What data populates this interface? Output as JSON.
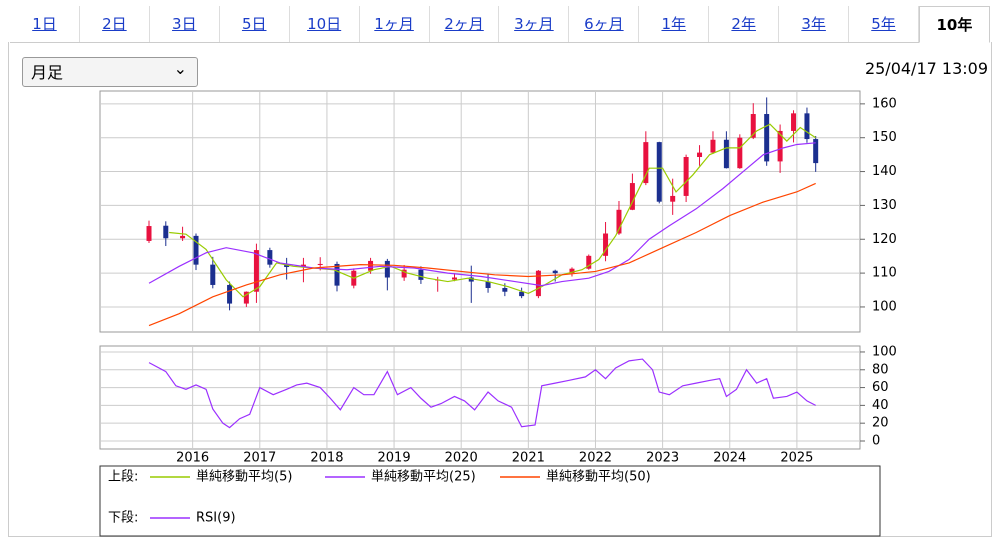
{
  "tabs": [
    "1日",
    "2日",
    "3日",
    "5日",
    "10日",
    "1ヶ月",
    "2ヶ月",
    "3ヶ月",
    "6ヶ月",
    "1年",
    "2年",
    "3年",
    "5年",
    "10年"
  ],
  "selected_tab": 13,
  "period_select": "月足",
  "timestamp": "25/04/17 13:09",
  "chart_data": [
    {
      "type": "candlestick",
      "legend_label": "上段:",
      "up_color": "#e8113f",
      "down_color": "#1b2f8f",
      "xlim": [
        2014.62,
        2025.94
      ],
      "xticks": [
        2016,
        2017,
        2018,
        2019,
        2020,
        2021,
        2022,
        2023,
        2024,
        2025
      ],
      "ylim": [
        92.6,
        163.8
      ],
      "yticks": [
        100,
        110,
        120,
        130,
        140,
        150,
        160
      ],
      "grid": true,
      "x": [
        2015.35,
        2015.6,
        2015.85,
        2016.05,
        2016.3,
        2016.55,
        2016.8,
        2016.95,
        2017.15,
        2017.4,
        2017.65,
        2017.9,
        2018.15,
        2018.4,
        2018.65,
        2018.9,
        2019.15,
        2019.4,
        2019.65,
        2019.9,
        2020.15,
        2020.4,
        2020.65,
        2020.9,
        2021.15,
        2021.4,
        2021.65,
        2021.9,
        2022.15,
        2022.35,
        2022.55,
        2022.75,
        2022.95,
        2023.15,
        2023.35,
        2023.55,
        2023.75,
        2023.95,
        2024.15,
        2024.35,
        2024.55,
        2024.75,
        2024.95,
        2025.15,
        2025.28
      ],
      "open": [
        119.5,
        124,
        120.3,
        121,
        112.5,
        106.5,
        101,
        104.5,
        116.8,
        112.5,
        111.8,
        112.5,
        112.7,
        106.3,
        110.7,
        113.6,
        108.7,
        111,
        108,
        108.1,
        108.7,
        107.5,
        105.6,
        104.5,
        103.2,
        110.7,
        110,
        111.3,
        115.1,
        121.7,
        128.7,
        136.6,
        148.7,
        131.1,
        132.8,
        144.3,
        145.6,
        149.4,
        141,
        150,
        157,
        143,
        152,
        157.2,
        149.6
      ],
      "high": [
        125.5,
        125.3,
        123.7,
        121.7,
        114.8,
        107.5,
        104.6,
        118.7,
        117.5,
        114.5,
        114.5,
        114.7,
        113.4,
        111.4,
        114.5,
        114.2,
        112.4,
        112,
        108.9,
        110,
        112.2,
        109.8,
        107,
        105.7,
        110.9,
        111,
        111.7,
        115.5,
        125.1,
        131.3,
        139.4,
        151.9,
        148.8,
        137.9,
        145,
        147.8,
        151.9,
        151.9,
        151,
        160.2,
        161.9,
        153.9,
        158.1,
        158.9,
        150.5
      ],
      "low": [
        118.9,
        118,
        119.5,
        110.9,
        105.5,
        99,
        100,
        101.2,
        111.6,
        108.1,
        107.3,
        110.8,
        104.6,
        105.5,
        109.8,
        104.9,
        107.7,
        106.8,
        104.5,
        107.6,
        101.2,
        104.2,
        103.2,
        102.6,
        102.6,
        107.5,
        109,
        111,
        113.5,
        121.3,
        128.6,
        136,
        130.6,
        127.2,
        131,
        141.7,
        145.2,
        140.9,
        140.8,
        149.6,
        141.7,
        139.6,
        148.6,
        148.5,
        139.9
      ],
      "close": [
        123.9,
        120.3,
        121,
        112.5,
        106.5,
        101,
        104.5,
        116.8,
        112.5,
        111.8,
        112.5,
        112.7,
        106.3,
        110.7,
        113.6,
        108.7,
        111,
        108,
        108.1,
        108.7,
        107.5,
        105.6,
        104.5,
        103.2,
        110.7,
        110,
        111.3,
        115.1,
        121.7,
        128.7,
        136.6,
        148.7,
        131.1,
        132.8,
        144.3,
        145.6,
        149.4,
        141,
        150,
        157,
        143,
        152,
        157.2,
        149.6,
        142.5
      ],
      "series": [
        {
          "name": "単純移動平均(5)",
          "color": "#99cc00",
          "x": [
            2015.65,
            2015.9,
            2016.2,
            2016.5,
            2016.75,
            2017.0,
            2017.25,
            2017.5,
            2017.8,
            2018.1,
            2018.4,
            2018.7,
            2018.95,
            2019.2,
            2019.5,
            2019.8,
            2020.1,
            2020.4,
            2020.7,
            2021.0,
            2021.2,
            2021.5,
            2021.8,
            2022.05,
            2022.3,
            2022.55,
            2022.8,
            2023.0,
            2023.2,
            2023.45,
            2023.7,
            2023.95,
            2024.15,
            2024.4,
            2024.6,
            2024.85,
            2025.05,
            2025.28
          ],
          "values": [
            122,
            121.5,
            117,
            108,
            103,
            106,
            113,
            112,
            111.5,
            111,
            108.5,
            111,
            112,
            110,
            108.5,
            107.5,
            108.5,
            107.5,
            106,
            104,
            106,
            109.5,
            111,
            114,
            121,
            131,
            141,
            141,
            134,
            139,
            145,
            147,
            147,
            152,
            154,
            149,
            153,
            150
          ]
        },
        {
          "name": "単純移動平均(25)",
          "color": "#9b30ff",
          "x": [
            2015.35,
            2015.8,
            2016.2,
            2016.5,
            2016.9,
            2017.3,
            2017.8,
            2018.3,
            2018.8,
            2019.3,
            2019.8,
            2020.3,
            2020.8,
            2021.2,
            2021.5,
            2021.9,
            2022.2,
            2022.5,
            2022.8,
            2023.1,
            2023.5,
            2023.9,
            2024.2,
            2024.5,
            2024.8,
            2025.0,
            2025.28
          ],
          "values": [
            107,
            112,
            116,
            117.5,
            116,
            113,
            111.5,
            111,
            112,
            111.5,
            110,
            109,
            107.5,
            106.3,
            107.5,
            108.5,
            110.5,
            114,
            120,
            124,
            129,
            135,
            140,
            145,
            147,
            148,
            148.5
          ]
        },
        {
          "name": "単純移動平均(50)",
          "color": "#ff4500",
          "x": [
            2015.35,
            2015.8,
            2016.3,
            2016.8,
            2017.3,
            2017.8,
            2018.5,
            2019.0,
            2019.5,
            2020.0,
            2020.5,
            2021.0,
            2021.5,
            2022.0,
            2022.5,
            2023.0,
            2023.5,
            2024.0,
            2024.5,
            2025.0,
            2025.28
          ],
          "values": [
            94.5,
            98,
            103,
            106.5,
            109.5,
            111.5,
            112.5,
            112.3,
            111.5,
            110.5,
            109.5,
            109,
            109.5,
            110.5,
            113,
            117.5,
            122,
            127,
            131,
            134,
            136.5
          ]
        }
      ]
    },
    {
      "type": "line",
      "legend_label": "下段:",
      "xlim": [
        2014.62,
        2025.94
      ],
      "xticks": [
        2016,
        2017,
        2018,
        2019,
        2020,
        2021,
        2022,
        2023,
        2024,
        2025
      ],
      "ylim": [
        -9,
        106.7
      ],
      "yticks": [
        0,
        20,
        40,
        60,
        80,
        100
      ],
      "grid": true,
      "series": [
        {
          "name": "RSI(9)",
          "color": "#9b30ff",
          "x": [
            2015.35,
            2015.6,
            2015.75,
            2015.9,
            2016.05,
            2016.2,
            2016.3,
            2016.45,
            2016.55,
            2016.7,
            2016.85,
            2017.0,
            2017.2,
            2017.4,
            2017.55,
            2017.7,
            2017.9,
            2018.05,
            2018.2,
            2018.4,
            2018.55,
            2018.7,
            2018.9,
            2019.05,
            2019.25,
            2019.4,
            2019.55,
            2019.7,
            2019.9,
            2020.05,
            2020.2,
            2020.4,
            2020.55,
            2020.75,
            2020.9,
            2021.1,
            2021.2,
            2021.4,
            2021.6,
            2021.85,
            2022.0,
            2022.15,
            2022.3,
            2022.5,
            2022.7,
            2022.85,
            2022.95,
            2023.1,
            2023.3,
            2023.5,
            2023.7,
            2023.85,
            2023.95,
            2024.1,
            2024.25,
            2024.4,
            2024.55,
            2024.65,
            2024.85,
            2025.0,
            2025.15,
            2025.28
          ],
          "values": [
            88,
            78,
            62,
            58,
            63,
            58,
            36,
            20,
            15,
            25,
            30,
            60,
            52,
            58,
            63,
            65,
            60,
            48,
            35,
            60,
            52,
            52,
            78,
            52,
            60,
            48,
            38,
            42,
            50,
            45,
            35,
            55,
            45,
            38,
            16,
            18,
            62,
            65,
            68,
            72,
            80,
            70,
            82,
            90,
            92,
            80,
            55,
            52,
            62,
            65,
            68,
            70,
            50,
            58,
            80,
            65,
            70,
            48,
            50,
            55,
            45,
            40
          ]
        }
      ]
    }
  ]
}
